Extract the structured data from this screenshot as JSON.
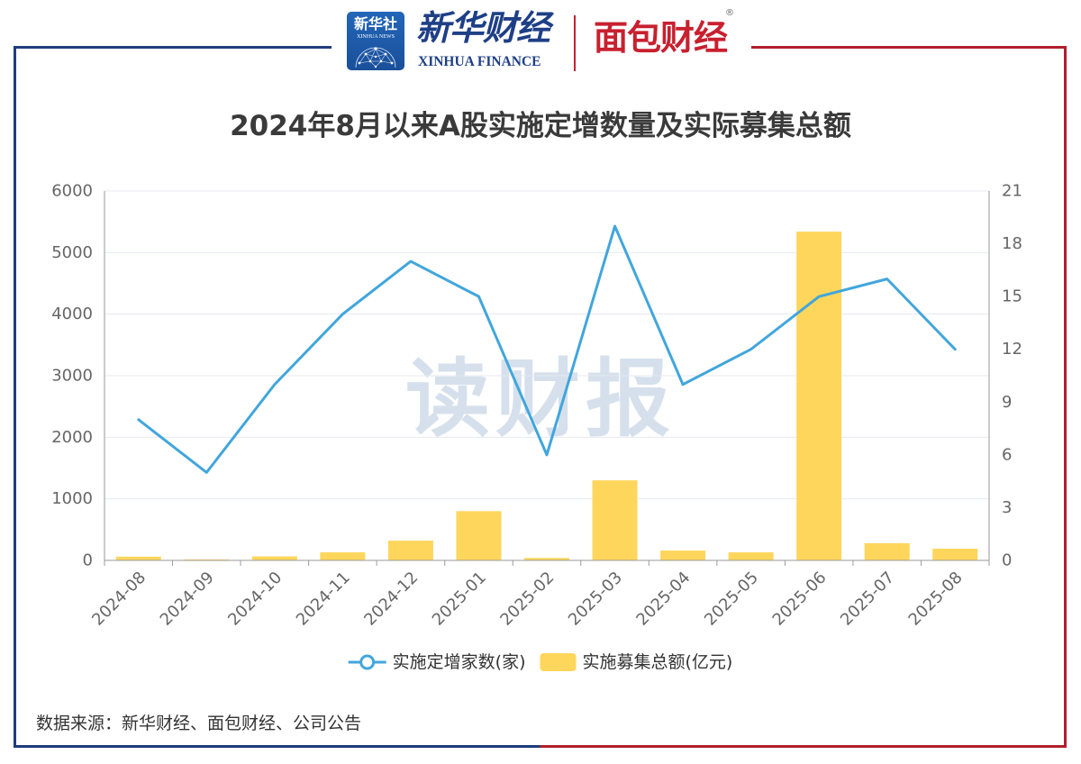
{
  "header": {
    "xinhua_news": {
      "cn": "新华社",
      "en": "XINHUA NEWS"
    },
    "xinhua_finance": {
      "cn": "新华财经",
      "en": "XINHUA FINANCE"
    },
    "mianbao_finance": {
      "cn": "面包财经",
      "registered_mark": "®"
    }
  },
  "colors": {
    "frame_blue": "#1f3d7b",
    "frame_red": "#b11f2d",
    "xinhua_finance_blue": "#1e3f86",
    "mianbao_red": "#c8202f",
    "title": "#3a3a3a",
    "watermark": "#d6e0ec"
  },
  "watermark": "读财报",
  "chart_data": {
    "type": "bar",
    "title": "2024年8月以来A股实施定增数量及实际募集总额",
    "xlabel": "",
    "ylabel": "",
    "categories": [
      "2024-08",
      "2024-09",
      "2024-10",
      "2024-11",
      "2024-12",
      "2025-01",
      "2025-02",
      "2025-03",
      "2025-04",
      "2025-05",
      "2025-06",
      "2025-07",
      "2025-08"
    ],
    "series": [
      {
        "name": "实施定增家数(家)",
        "type": "line",
        "y_axis": "right",
        "color": "#41a6dc",
        "values": [
          8,
          5,
          10,
          14,
          17,
          15,
          6,
          19,
          10,
          12,
          15,
          16,
          12
        ]
      },
      {
        "name": "实施募集总额(亿元)",
        "type": "bar",
        "y_axis": "left",
        "color": "#ffd65c",
        "values": [
          60,
          15,
          65,
          130,
          320,
          800,
          40,
          1300,
          160,
          130,
          5340,
          280,
          190
        ]
      }
    ],
    "y_left": {
      "ylim": [
        0,
        6000
      ],
      "ticks": [
        0,
        1000,
        2000,
        3000,
        4000,
        5000,
        6000
      ]
    },
    "y_right": {
      "ylim": [
        0,
        21
      ],
      "ticks": [
        0,
        3,
        6,
        9,
        12,
        15,
        18,
        21
      ]
    },
    "grid": true,
    "legend": {
      "position": "bottom-center"
    },
    "axis_color": "#9a9a9a",
    "grid_color": "#e4e9f1",
    "tick_label_color": "#666666",
    "legend_text_color": "#333333"
  },
  "footer": {
    "source": "数据来源：新华财经、面包财经、公司公告"
  }
}
